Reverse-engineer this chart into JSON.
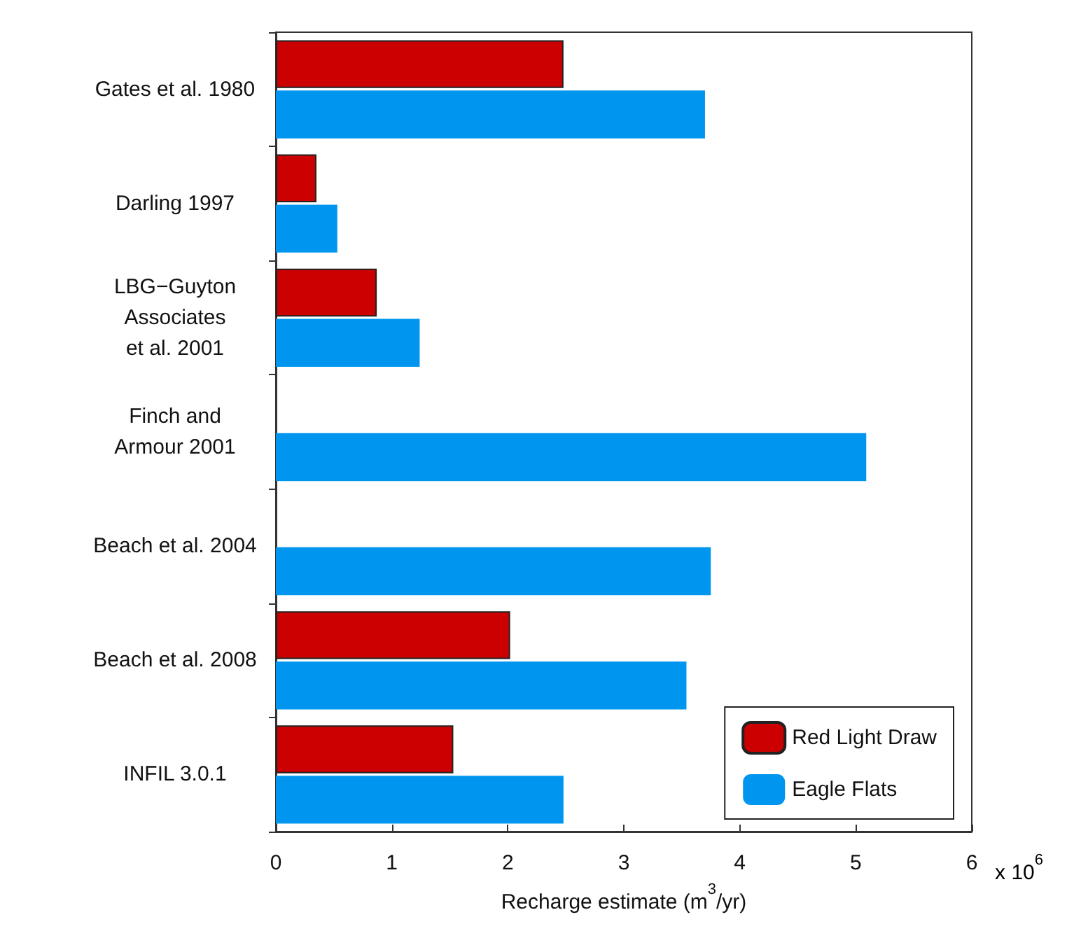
{
  "chart_data": {
    "type": "bar",
    "orientation": "horizontal",
    "xlabel": "Recharge estimate (m$^{3}$/yr)",
    "categories": [
      "Gates et al. 1980",
      "Darling 1997",
      "LBG−Guyton\nAssociates\net al. 2001",
      "Finch and\nArmour 2001",
      "Beach et al. 2004",
      "Beach et al. 2008",
      "INFIL 3.0.1"
    ],
    "series": [
      {
        "name": "Red Light Draw",
        "color": "#cc0000",
        "values": [
          2.48,
          0.35,
          0.87,
          null,
          null,
          2.02,
          1.53
        ]
      },
      {
        "name": "Eagle Flats",
        "color": "#0096f0",
        "values": [
          3.7,
          0.53,
          1.24,
          5.09,
          3.75,
          3.54,
          2.48
        ]
      }
    ],
    "xlim": [
      0,
      6
    ],
    "xticks": [
      0,
      1,
      2,
      3,
      4,
      5,
      6
    ],
    "annotations": [
      "x 10$^{6}$"
    ],
    "grid": false,
    "legend": "bottom right"
  }
}
